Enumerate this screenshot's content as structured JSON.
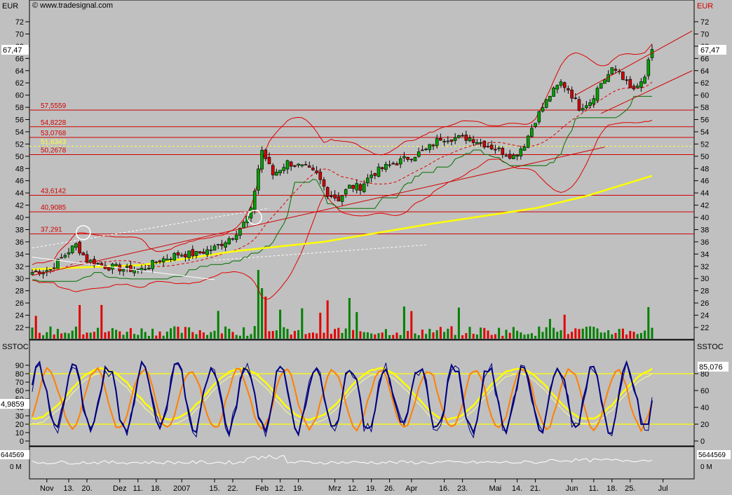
{
  "header": {
    "currency_left": "EUR",
    "currency_right": "EUR",
    "source": "© www.tradesignal.com"
  },
  "price_panel": {
    "yticks": [
      22,
      24,
      26,
      28,
      30,
      32,
      34,
      36,
      38,
      40,
      42,
      44,
      46,
      48,
      50,
      52,
      54,
      56,
      58,
      60,
      62,
      64,
      66,
      68,
      70,
      72
    ],
    "last_label": "67,47",
    "levels": [
      {
        "label": "57,5559",
        "value": 57.5559,
        "color": "#d00000"
      },
      {
        "label": "54,8228",
        "value": 54.8228,
        "color": "#d00000"
      },
      {
        "label": "53,0768",
        "value": 53.0768,
        "color": "#d00000"
      },
      {
        "label": "51,6343",
        "value": 51.6343,
        "color": "#ffff40"
      },
      {
        "label": "50,2678",
        "value": 50.2678,
        "color": "#d00000"
      },
      {
        "label": "43,6142",
        "value": 43.6142,
        "color": "#d00000"
      },
      {
        "label": "40,9085",
        "value": 40.9085,
        "color": "#d00000"
      },
      {
        "label": "37,291",
        "value": 37.291,
        "color": "#d00000"
      }
    ]
  },
  "sstoc_panel": {
    "title_left": "SSTOC",
    "title_right": "SSTOC",
    "yticks_left": [
      0,
      10,
      20,
      30,
      40,
      50,
      60,
      70,
      80,
      90
    ],
    "yticks_right": [
      0,
      20,
      40,
      60,
      80
    ],
    "left_value_label": "4,9859",
    "right_value_label": "85,076",
    "ref_lines": [
      80,
      20
    ]
  },
  "volume_panel": {
    "left_label": "644569",
    "right_label": "5644569",
    "left_unit": "0 M",
    "right_unit": "0 M"
  },
  "x_axis": {
    "labels": [
      {
        "t": "Nov",
        "i": 4
      },
      {
        "t": "13.",
        "i": 10
      },
      {
        "t": "20.",
        "i": 15
      },
      {
        "t": "Dez",
        "i": 24
      },
      {
        "t": "11.",
        "i": 29
      },
      {
        "t": "18.",
        "i": 34
      },
      {
        "t": "2007",
        "i": 41
      },
      {
        "t": "15.",
        "i": 50
      },
      {
        "t": "22.",
        "i": 55
      },
      {
        "t": "Feb",
        "i": 63
      },
      {
        "t": "12.",
        "i": 68
      },
      {
        "t": "19.",
        "i": 73
      },
      {
        "t": "Mrz",
        "i": 83
      },
      {
        "t": "12.",
        "i": 88
      },
      {
        "t": "19.",
        "i": 93
      },
      {
        "t": "26.",
        "i": 98
      },
      {
        "t": "Apr",
        "i": 104
      },
      {
        "t": "16.",
        "i": 113
      },
      {
        "t": "23.",
        "i": 118
      },
      {
        "t": "Mai",
        "i": 127
      },
      {
        "t": "14.",
        "i": 133
      },
      {
        "t": "21.",
        "i": 138
      },
      {
        "t": "Jun",
        "i": 148
      },
      {
        "t": "11.",
        "i": 154
      },
      {
        "t": "18.",
        "i": 159
      },
      {
        "t": "25.",
        "i": 164
      },
      {
        "t": "Jul",
        "i": 173
      }
    ]
  },
  "chart_data": {
    "type": "candlestick",
    "ylim": [
      20,
      74
    ],
    "keypoints": [
      [
        0,
        31
      ],
      [
        5,
        31.5
      ],
      [
        10,
        34.5
      ],
      [
        12,
        35.5
      ],
      [
        15,
        33
      ],
      [
        20,
        32
      ],
      [
        26,
        31.5
      ],
      [
        30,
        31.5
      ],
      [
        35,
        33
      ],
      [
        40,
        34
      ],
      [
        45,
        34
      ],
      [
        50,
        35
      ],
      [
        55,
        37
      ],
      [
        58,
        39
      ],
      [
        60,
        41
      ],
      [
        62,
        48
      ],
      [
        63,
        51
      ],
      [
        66,
        47
      ],
      [
        70,
        49
      ],
      [
        75,
        48
      ],
      [
        78,
        47
      ],
      [
        81,
        44
      ],
      [
        84,
        43
      ],
      [
        87,
        45
      ],
      [
        90,
        45
      ],
      [
        93,
        47
      ],
      [
        96,
        48
      ],
      [
        100,
        49
      ],
      [
        104,
        50
      ],
      [
        108,
        51
      ],
      [
        112,
        53
      ],
      [
        116,
        53
      ],
      [
        120,
        53
      ],
      [
        124,
        52
      ],
      [
        128,
        51
      ],
      [
        132,
        50
      ],
      [
        135,
        52
      ],
      [
        138,
        56
      ],
      [
        142,
        60
      ],
      [
        145,
        62
      ],
      [
        147,
        61
      ],
      [
        150,
        58
      ],
      [
        153,
        59
      ],
      [
        156,
        62
      ],
      [
        159,
        64
      ],
      [
        161,
        64
      ],
      [
        164,
        61
      ],
      [
        166,
        61
      ],
      [
        168,
        63
      ],
      [
        170,
        67.5
      ]
    ],
    "candle_count": 171,
    "last": 67.47,
    "sma200": [
      [
        0,
        31.5
      ],
      [
        30,
        32.2
      ],
      [
        56,
        34.5
      ],
      [
        80,
        36
      ],
      [
        110,
        39
      ],
      [
        138,
        41.5
      ],
      [
        152,
        43.5
      ],
      [
        170,
        46.8
      ]
    ],
    "trend_lines": [
      {
        "x1": 0,
        "y1": 30.5,
        "x2": 157,
        "y2": 51.5,
        "color": "#d00000"
      },
      {
        "x1": 149,
        "y1": 60,
        "x2": 181,
        "y2": 70.5,
        "color": "#d00000"
      },
      {
        "x1": 156,
        "y1": 57,
        "x2": 181,
        "y2": 64,
        "color": "#d00000"
      },
      {
        "x1": 0,
        "y1": 33.5,
        "x2": 50,
        "y2": 29.8,
        "color": "#ffffff"
      },
      {
        "x1": 0,
        "y1": 35,
        "x2": 65,
        "y2": 41.5,
        "color": "#ffffff",
        "dash": true
      },
      {
        "x1": 50,
        "y1": 33,
        "x2": 108,
        "y2": 35.5,
        "color": "#ffffff",
        "dash": true
      }
    ],
    "circles": [
      [
        14,
        37.5
      ],
      [
        61,
        40
      ]
    ]
  }
}
